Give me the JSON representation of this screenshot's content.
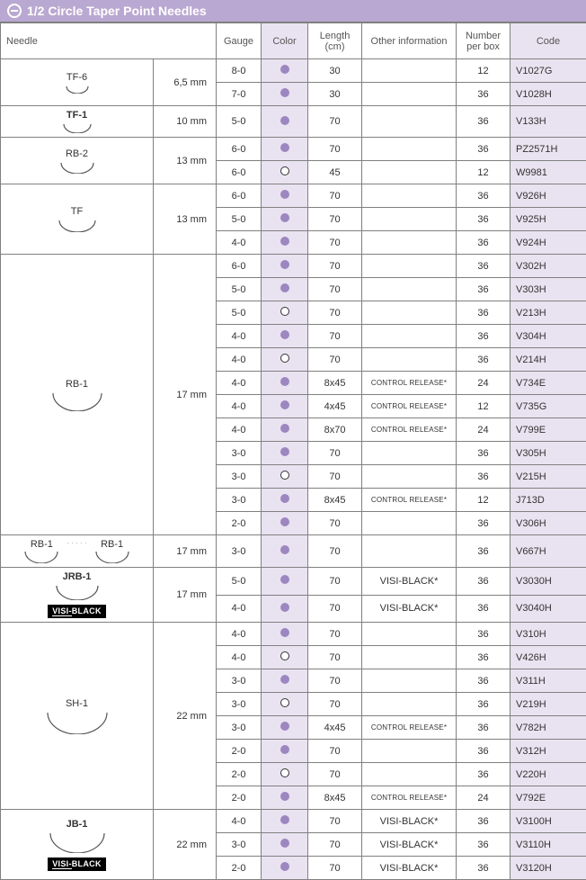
{
  "header": {
    "title": "1/2 Circle Taper Point Needles"
  },
  "columns": {
    "needle": "Needle",
    "gauge": "Gauge",
    "color": "Color",
    "length": "Length (cm)",
    "other": "Other information",
    "nbox": "Number per box",
    "code": "Code"
  },
  "widths": {
    "needle_img": 170,
    "needle_sz": 70,
    "gauge": 50,
    "color": 52,
    "length": 60,
    "other": 105,
    "nbox": 60,
    "code": 85
  },
  "colors": {
    "header_bg": "#b9a8d1",
    "light_purple": "#e9e3f1",
    "dot": "#9d87c0",
    "border": "#808080",
    "text": "#333333"
  },
  "color_legend": {
    "filled": "dot",
    "open": "ring"
  },
  "groups": [
    {
      "needle": {
        "label": "TF-6",
        "arc_w": 28,
        "arc_h": 10,
        "bold": false
      },
      "size": "6,5 mm",
      "rows": [
        {
          "gauge": "8-0",
          "color": "filled",
          "length": "30",
          "other": "",
          "nbox": "12",
          "code": "V1027G"
        },
        {
          "gauge": "7-0",
          "color": "filled",
          "length": "30",
          "other": "",
          "nbox": "36",
          "code": "V1028H"
        }
      ]
    },
    {
      "needle": {
        "label": "TF-1",
        "arc_w": 34,
        "arc_h": 12,
        "bold": true
      },
      "size": "10 mm",
      "rows": [
        {
          "gauge": "5-0",
          "color": "filled",
          "length": "70",
          "other": "",
          "nbox": "36",
          "code": "V133H"
        }
      ]
    },
    {
      "needle": {
        "label": "RB-2",
        "arc_w": 40,
        "arc_h": 14,
        "bold": false
      },
      "size": "13 mm",
      "rows": [
        {
          "gauge": "6-0",
          "color": "filled",
          "length": "70",
          "other": "",
          "nbox": "36",
          "code": "PZ2571H"
        },
        {
          "gauge": "6-0",
          "color": "open",
          "length": "45",
          "other": "",
          "nbox": "12",
          "code": "W9981"
        }
      ]
    },
    {
      "needle": {
        "label": "TF",
        "arc_w": 44,
        "arc_h": 15,
        "bold": false
      },
      "size": "13 mm",
      "rows": [
        {
          "gauge": "6-0",
          "color": "filled",
          "length": "70",
          "other": "",
          "nbox": "36",
          "code": "V926H"
        },
        {
          "gauge": "5-0",
          "color": "filled",
          "length": "70",
          "other": "",
          "nbox": "36",
          "code": "V925H"
        },
        {
          "gauge": "4-0",
          "color": "filled",
          "length": "70",
          "other": "",
          "nbox": "36",
          "code": "V924H"
        }
      ]
    },
    {
      "needle": {
        "label": "RB-1",
        "arc_w": 58,
        "arc_h": 22,
        "bold": false
      },
      "size": "17 mm",
      "rows": [
        {
          "gauge": "6-0",
          "color": "filled",
          "length": "70",
          "other": "",
          "nbox": "36",
          "code": "V302H"
        },
        {
          "gauge": "5-0",
          "color": "filled",
          "length": "70",
          "other": "",
          "nbox": "36",
          "code": "V303H"
        },
        {
          "gauge": "5-0",
          "color": "open",
          "length": "70",
          "other": "",
          "nbox": "36",
          "code": "V213H"
        },
        {
          "gauge": "4-0",
          "color": "filled",
          "length": "70",
          "other": "",
          "nbox": "36",
          "code": "V304H"
        },
        {
          "gauge": "4-0",
          "color": "open",
          "length": "70",
          "other": "",
          "nbox": "36",
          "code": "V214H"
        },
        {
          "gauge": "4-0",
          "color": "filled",
          "length": "8x45",
          "other": "CONTROL RELEASE*",
          "other_small": true,
          "nbox": "24",
          "code": "V734E"
        },
        {
          "gauge": "4-0",
          "color": "filled",
          "length": "4x45",
          "other": "CONTROL RELEASE*",
          "other_small": true,
          "nbox": "12",
          "code": "V735G"
        },
        {
          "gauge": "4-0",
          "color": "filled",
          "length": "8x70",
          "other": "CONTROL RELEASE*",
          "other_small": true,
          "nbox": "24",
          "code": "V799E"
        },
        {
          "gauge": "3-0",
          "color": "filled",
          "length": "70",
          "other": "",
          "nbox": "36",
          "code": "V305H"
        },
        {
          "gauge": "3-0",
          "color": "open",
          "length": "70",
          "other": "",
          "nbox": "36",
          "code": "V215H"
        },
        {
          "gauge": "3-0",
          "color": "filled",
          "length": "8x45",
          "other": "CONTROL RELEASE*",
          "other_small": true,
          "nbox": "12",
          "code": "J713D"
        },
        {
          "gauge": "2-0",
          "color": "filled",
          "length": "70",
          "other": "",
          "nbox": "36",
          "code": "V306H"
        }
      ]
    },
    {
      "needle": {
        "double": true,
        "label": "RB-1",
        "arc_w": 40,
        "arc_h": 15,
        "bold": false
      },
      "size": "17 mm",
      "rows": [
        {
          "gauge": "3-0",
          "color": "filled",
          "length": "70",
          "other": "",
          "nbox": "36",
          "code": "V667H"
        }
      ]
    },
    {
      "needle": {
        "label": "JRB-1",
        "arc_w": 50,
        "arc_h": 18,
        "bold": true,
        "visiblack": true
      },
      "size": "17 mm",
      "rows": [
        {
          "gauge": "5-0",
          "color": "filled",
          "length": "70",
          "other": "VISI-BLACK*",
          "nbox": "36",
          "code": "V3030H"
        },
        {
          "gauge": "4-0",
          "color": "filled",
          "length": "70",
          "other": "VISI-BLACK*",
          "nbox": "36",
          "code": "V3040H"
        }
      ]
    },
    {
      "needle": {
        "label": "SH-1",
        "arc_w": 70,
        "arc_h": 26,
        "bold": false
      },
      "size": "22 mm",
      "rows": [
        {
          "gauge": "4-0",
          "color": "filled",
          "length": "70",
          "other": "",
          "nbox": "36",
          "code": "V310H"
        },
        {
          "gauge": "4-0",
          "color": "open",
          "length": "70",
          "other": "",
          "nbox": "36",
          "code": "V426H"
        },
        {
          "gauge": "3-0",
          "color": "filled",
          "length": "70",
          "other": "",
          "nbox": "36",
          "code": "V311H"
        },
        {
          "gauge": "3-0",
          "color": "open",
          "length": "70",
          "other": "",
          "nbox": "36",
          "code": "V219H"
        },
        {
          "gauge": "3-0",
          "color": "filled",
          "length": "4x45",
          "other": "CONTROL RELEASE*",
          "other_small": true,
          "nbox": "36",
          "code": "V782H"
        },
        {
          "gauge": "2-0",
          "color": "filled",
          "length": "70",
          "other": "",
          "nbox": "36",
          "code": "V312H"
        },
        {
          "gauge": "2-0",
          "color": "open",
          "length": "70",
          "other": "",
          "nbox": "36",
          "code": "V220H"
        },
        {
          "gauge": "2-0",
          "color": "filled",
          "length": "8x45",
          "other": "CONTROL RELEASE*",
          "other_small": true,
          "nbox": "24",
          "code": "V792E"
        }
      ]
    },
    {
      "needle": {
        "label": "JB-1",
        "arc_w": 64,
        "arc_h": 24,
        "bold": true,
        "visiblack": true
      },
      "size": "22 mm",
      "rows": [
        {
          "gauge": "4-0",
          "color": "filled",
          "length": "70",
          "other": "VISI-BLACK*",
          "nbox": "36",
          "code": "V3100H"
        },
        {
          "gauge": "3-0",
          "color": "filled",
          "length": "70",
          "other": "VISI-BLACK*",
          "nbox": "36",
          "code": "V3110H"
        },
        {
          "gauge": "2-0",
          "color": "filled",
          "length": "70",
          "other": "VISI-BLACK*",
          "nbox": "36",
          "code": "V3120H"
        }
      ]
    }
  ]
}
